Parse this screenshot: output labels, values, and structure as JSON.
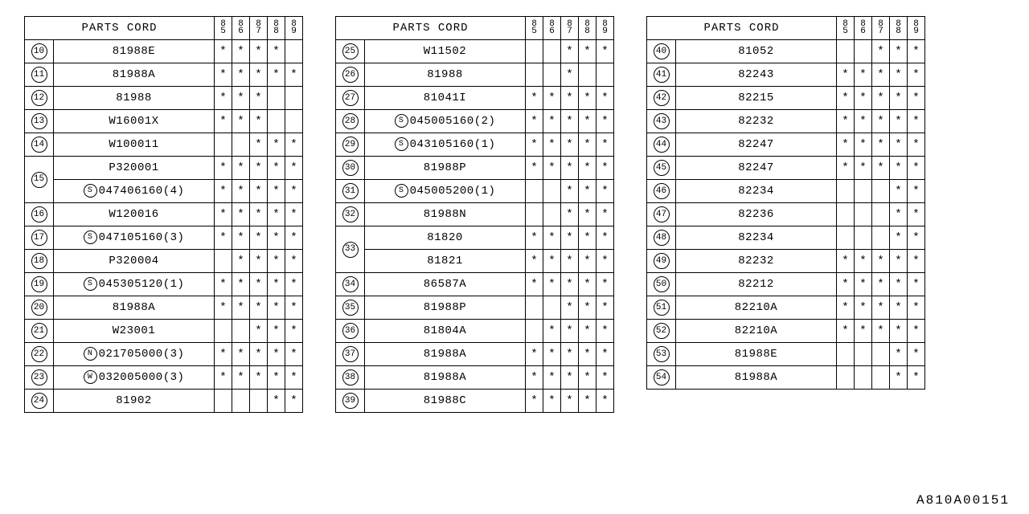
{
  "doc_code": "A810A00151",
  "title": "PARTS CORD",
  "years": [
    "85",
    "86",
    "87",
    "88",
    "89"
  ],
  "mark_char": "*",
  "colwidths": {
    "idx": 36,
    "part": 200,
    "yr": 22
  },
  "tables": [
    {
      "rows": [
        {
          "idx": "10",
          "part": "81988E",
          "m": [
            1,
            1,
            1,
            1,
            0
          ]
        },
        {
          "idx": "11",
          "part": "81988A",
          "m": [
            1,
            1,
            1,
            1,
            1
          ]
        },
        {
          "idx": "12",
          "part": "81988",
          "m": [
            1,
            1,
            1,
            0,
            0
          ]
        },
        {
          "idx": "13",
          "part": "W16001X",
          "m": [
            1,
            1,
            1,
            0,
            0
          ]
        },
        {
          "idx": "14",
          "part": "W100011",
          "m": [
            0,
            0,
            1,
            1,
            1
          ]
        },
        {
          "idx": "15",
          "rowspan": 2,
          "part": "P320001",
          "m": [
            1,
            1,
            1,
            1,
            1
          ]
        },
        {
          "part_prefix": "S",
          "part": "047406160(4)",
          "m": [
            1,
            1,
            1,
            1,
            1
          ]
        },
        {
          "idx": "16",
          "part": "W120016",
          "m": [
            1,
            1,
            1,
            1,
            1
          ]
        },
        {
          "idx": "17",
          "part_prefix": "S",
          "part": "047105160(3)",
          "m": [
            1,
            1,
            1,
            1,
            1
          ]
        },
        {
          "idx": "18",
          "part": "P320004",
          "m": [
            0,
            1,
            1,
            1,
            1
          ]
        },
        {
          "idx": "19",
          "part_prefix": "S",
          "part": "045305120(1)",
          "m": [
            1,
            1,
            1,
            1,
            1
          ]
        },
        {
          "idx": "20",
          "part": "81988A",
          "m": [
            1,
            1,
            1,
            1,
            1
          ]
        },
        {
          "idx": "21",
          "part": "W23001",
          "m": [
            0,
            0,
            1,
            1,
            1
          ]
        },
        {
          "idx": "22",
          "part_prefix": "N",
          "part": "021705000(3)",
          "m": [
            1,
            1,
            1,
            1,
            1
          ]
        },
        {
          "idx": "23",
          "part_prefix": "W",
          "part": "032005000(3)",
          "m": [
            1,
            1,
            1,
            1,
            1
          ]
        },
        {
          "idx": "24",
          "part": "81902",
          "m": [
            0,
            0,
            0,
            1,
            1
          ]
        }
      ]
    },
    {
      "rows": [
        {
          "idx": "25",
          "part": "W11502",
          "m": [
            0,
            0,
            1,
            1,
            1
          ]
        },
        {
          "idx": "26",
          "part": "81988",
          "m": [
            0,
            0,
            1,
            0,
            0
          ]
        },
        {
          "idx": "27",
          "part": "81041I",
          "m": [
            1,
            1,
            1,
            1,
            1
          ]
        },
        {
          "idx": "28",
          "part_prefix": "S",
          "part": "045005160(2)",
          "m": [
            1,
            1,
            1,
            1,
            1
          ]
        },
        {
          "idx": "29",
          "part_prefix": "S",
          "part": "043105160(1)",
          "m": [
            1,
            1,
            1,
            1,
            1
          ]
        },
        {
          "idx": "30",
          "part": "81988P",
          "m": [
            1,
            1,
            1,
            1,
            1
          ]
        },
        {
          "idx": "31",
          "part_prefix": "S",
          "part": "045005200(1)",
          "m": [
            0,
            0,
            1,
            1,
            1
          ]
        },
        {
          "idx": "32",
          "part": "81988N",
          "m": [
            0,
            0,
            1,
            1,
            1
          ]
        },
        {
          "idx": "33",
          "rowspan": 2,
          "part": "81820",
          "m": [
            1,
            1,
            1,
            1,
            1
          ]
        },
        {
          "part": "81821",
          "m": [
            1,
            1,
            1,
            1,
            1
          ]
        },
        {
          "idx": "34",
          "part": "86587A",
          "m": [
            1,
            1,
            1,
            1,
            1
          ]
        },
        {
          "idx": "35",
          "part": "81988P",
          "m": [
            0,
            0,
            1,
            1,
            1
          ]
        },
        {
          "idx": "36",
          "part": "81804A",
          "m": [
            0,
            1,
            1,
            1,
            1
          ]
        },
        {
          "idx": "37",
          "part": "81988A",
          "m": [
            1,
            1,
            1,
            1,
            1
          ]
        },
        {
          "idx": "38",
          "part": "81988A",
          "m": [
            1,
            1,
            1,
            1,
            1
          ]
        },
        {
          "idx": "39",
          "part": "81988C",
          "m": [
            1,
            1,
            1,
            1,
            1
          ]
        }
      ]
    },
    {
      "rows": [
        {
          "idx": "40",
          "part": "81052",
          "m": [
            0,
            0,
            1,
            1,
            1
          ]
        },
        {
          "idx": "41",
          "part": "82243",
          "m": [
            1,
            1,
            1,
            1,
            1
          ]
        },
        {
          "idx": "42",
          "part": "82215",
          "m": [
            1,
            1,
            1,
            1,
            1
          ]
        },
        {
          "idx": "43",
          "part": "82232",
          "m": [
            1,
            1,
            1,
            1,
            1
          ]
        },
        {
          "idx": "44",
          "part": "82247",
          "m": [
            1,
            1,
            1,
            1,
            1
          ]
        },
        {
          "idx": "45",
          "part": "82247",
          "m": [
            1,
            1,
            1,
            1,
            1
          ]
        },
        {
          "idx": "46",
          "part": "82234",
          "m": [
            0,
            0,
            0,
            1,
            1
          ]
        },
        {
          "idx": "47",
          "part": "82236",
          "m": [
            0,
            0,
            0,
            1,
            1
          ]
        },
        {
          "idx": "48",
          "part": "82234",
          "m": [
            0,
            0,
            0,
            1,
            1
          ]
        },
        {
          "idx": "49",
          "part": "82232",
          "m": [
            1,
            1,
            1,
            1,
            1
          ]
        },
        {
          "idx": "50",
          "part": "82212",
          "m": [
            1,
            1,
            1,
            1,
            1
          ]
        },
        {
          "idx": "51",
          "part": "82210A",
          "m": [
            1,
            1,
            1,
            1,
            1
          ]
        },
        {
          "idx": "52",
          "part": "82210A",
          "m": [
            1,
            1,
            1,
            1,
            1
          ]
        },
        {
          "idx": "53",
          "part": "81988E",
          "m": [
            0,
            0,
            0,
            1,
            1
          ]
        },
        {
          "idx": "54",
          "part": "81988A",
          "m": [
            0,
            0,
            0,
            1,
            1
          ]
        }
      ]
    }
  ]
}
